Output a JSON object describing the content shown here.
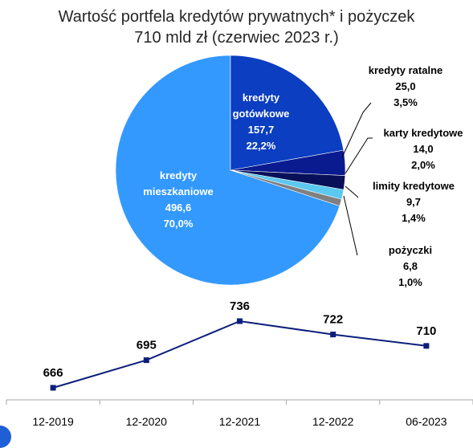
{
  "title_line1": "Wartość portfela kredytów prywatnych* i pożyczek",
  "title_line2": "710 mld zł (czerwiec 2023 r.)",
  "chart_data": [
    {
      "type": "pie",
      "slices": [
        {
          "name_lines": [
            "kredyty",
            "mieszkaniowe"
          ],
          "value": 496.6,
          "value_label": "496,6",
          "percent_label": "70,0%",
          "color": "#3399ff",
          "label_inside": true
        },
        {
          "name_lines": [
            "kredyty",
            "gotówkowe"
          ],
          "value": 157.7,
          "value_label": "157,7",
          "percent_label": "22,2%",
          "color": "#0b3ec0",
          "label_inside": true
        },
        {
          "name_lines": [
            "kredyty ratalne"
          ],
          "value": 25.0,
          "value_label": "25,0",
          "percent_label": "3,5%",
          "color": "#0a1a8f",
          "label_inside": false
        },
        {
          "name_lines": [
            "karty kredytowe"
          ],
          "value": 14.0,
          "value_label": "14,0",
          "percent_label": "2,0%",
          "color": "#071059",
          "label_inside": false
        },
        {
          "name_lines": [
            "limity kredytowe"
          ],
          "value": 9.7,
          "value_label": "9,7",
          "percent_label": "1,4%",
          "color": "#5bc8f0",
          "label_inside": false
        },
        {
          "name_lines": [
            "pożyczki"
          ],
          "value": 6.8,
          "value_label": "6,8",
          "percent_label": "1,0%",
          "color": "#808080",
          "label_inside": false
        }
      ]
    },
    {
      "type": "line",
      "categories": [
        "12-2019",
        "12-2020",
        "12-2021",
        "12-2022",
        "06-2023"
      ],
      "values": [
        666,
        695,
        736,
        722,
        710
      ],
      "color": "#0d1f7a",
      "ylim": [
        650,
        750
      ]
    }
  ]
}
